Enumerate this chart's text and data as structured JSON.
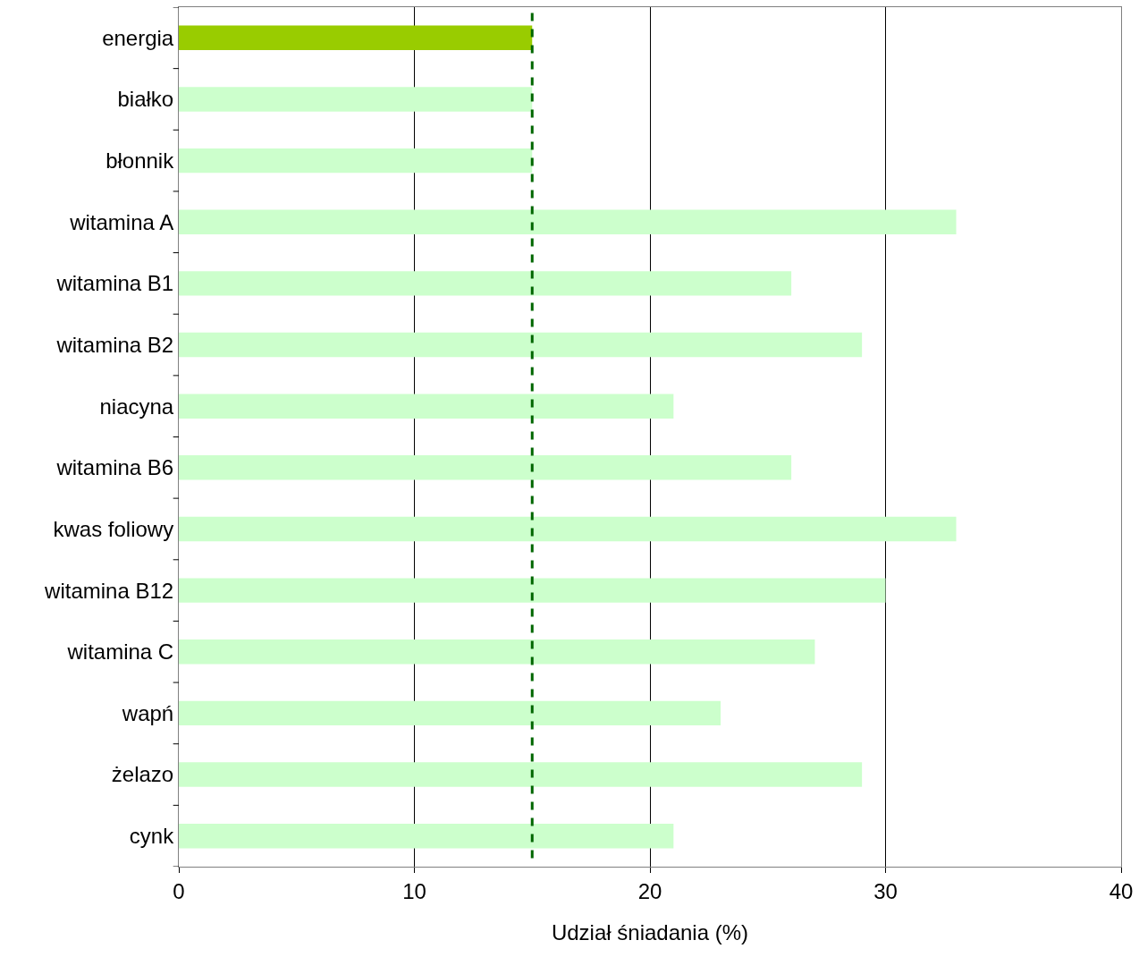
{
  "chart_data": {
    "type": "bar",
    "orientation": "horizontal",
    "xlabel": "Udział śniadania (%)",
    "categories": [
      "energia",
      "białko",
      "błonnik",
      "witamina A",
      "witamina B1",
      "witamina B2",
      "niacyna",
      "witamina B6",
      "kwas foliowy",
      "witamina B12",
      "witamina C",
      "wapń",
      "żelazo",
      "cynk"
    ],
    "values": [
      15,
      15,
      15,
      33,
      26,
      29,
      21,
      26,
      33,
      30,
      27,
      23,
      29,
      21
    ],
    "colors": [
      "#99cc00",
      "#ccffcc",
      "#ccffcc",
      "#ccffcc",
      "#ccffcc",
      "#ccffcc",
      "#ccffcc",
      "#ccffcc",
      "#ccffcc",
      "#ccffcc",
      "#ccffcc",
      "#ccffcc",
      "#ccffcc",
      "#ccffcc"
    ],
    "xlim": [
      0,
      40
    ],
    "xticks": [
      0,
      10,
      20,
      30,
      40
    ],
    "grid": "x",
    "ref_lines": [
      {
        "axis": "x",
        "value": 15,
        "color": "#006600",
        "line_style": "dashed"
      }
    ]
  }
}
